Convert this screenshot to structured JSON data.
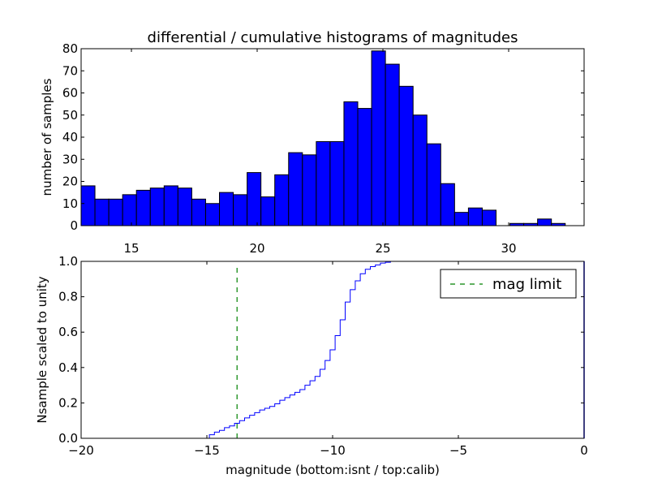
{
  "chart_data": [
    {
      "type": "bar",
      "title": "differential / cumulative histograms of magnitudes",
      "ylabel": "number of samples",
      "xlabel": "",
      "xlim": [
        13.0,
        33.0
      ],
      "ylim": [
        0,
        80
      ],
      "xticks": [
        15,
        20,
        25,
        30
      ],
      "yticks": [
        0,
        10,
        20,
        30,
        40,
        50,
        60,
        70,
        80
      ],
      "xtick_position": "top",
      "bar_color": "#0000ff",
      "edge_color": "#000000",
      "bin_start": 13.0,
      "bin_width": 0.55,
      "values": [
        18,
        12,
        12,
        14,
        16,
        17,
        18,
        17,
        12,
        10,
        15,
        14,
        24,
        13,
        23,
        33,
        32,
        38,
        38,
        56,
        53,
        79,
        73,
        63,
        50,
        37,
        19,
        6,
        8,
        7,
        0,
        1,
        1,
        3,
        1
      ]
    },
    {
      "type": "line",
      "step": true,
      "ylabel": "Nsample scaled to unity",
      "xlabel": "magnitude (bottom:isnt / top:calib)",
      "xlim": [
        -20,
        0
      ],
      "ylim": [
        0.0,
        1.0
      ],
      "xticks": [
        -20,
        -15,
        -10,
        -5,
        0
      ],
      "xtick_labels": [
        "−20",
        "−15",
        "−10",
        "−5",
        "0"
      ],
      "yticks": [
        0.0,
        0.2,
        0.4,
        0.6,
        0.8,
        1.0
      ],
      "ytick_labels": [
        "0.0",
        "0.2",
        "0.4",
        "0.6",
        "0.8",
        "1.0"
      ],
      "series": [
        {
          "name": "cumulative",
          "color": "#0000ff",
          "x": [
            -20,
            -15.1,
            -14.9,
            -14.7,
            -14.5,
            -14.3,
            -14.1,
            -13.9,
            -13.7,
            -13.5,
            -13.3,
            -13.1,
            -12.9,
            -12.7,
            -12.5,
            -12.3,
            -12.1,
            -11.9,
            -11.7,
            -11.5,
            -11.3,
            -11.1,
            -10.9,
            -10.7,
            -10.5,
            -10.3,
            -10.1,
            -9.9,
            -9.7,
            -9.5,
            -9.3,
            -9.1,
            -8.9,
            -8.7,
            -8.5,
            -8.3,
            -8.1,
            -7.9,
            -7.7,
            -6.7
          ],
          "y": [
            0.0,
            0.0,
            0.02,
            0.035,
            0.045,
            0.06,
            0.07,
            0.085,
            0.1,
            0.115,
            0.13,
            0.145,
            0.16,
            0.17,
            0.18,
            0.195,
            0.215,
            0.23,
            0.245,
            0.26,
            0.275,
            0.3,
            0.325,
            0.35,
            0.39,
            0.44,
            0.5,
            0.58,
            0.67,
            0.77,
            0.84,
            0.89,
            0.93,
            0.955,
            0.97,
            0.98,
            0.99,
            0.995,
            1.0,
            1.0
          ]
        },
        {
          "name": "mag limit",
          "color": "#008000",
          "dashed": true,
          "x": [
            -13.8,
            -13.8
          ],
          "y": [
            0.0,
            0.97
          ]
        }
      ],
      "legend": {
        "entries": [
          "mag limit"
        ],
        "position": "top-right"
      },
      "end_marker_x": 0
    }
  ]
}
